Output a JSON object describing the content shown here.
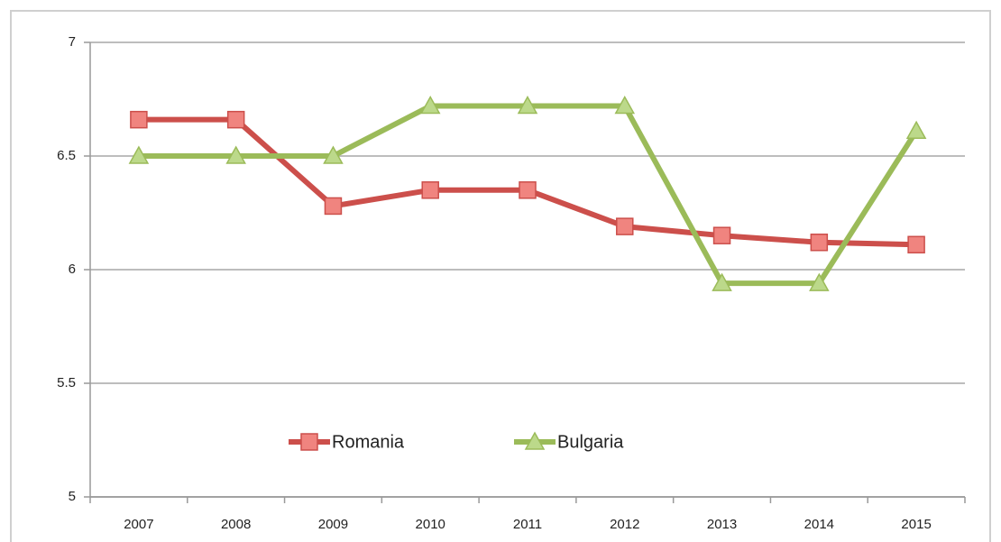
{
  "chart_data": {
    "type": "line",
    "categories": [
      "2007",
      "2008",
      "2009",
      "2010",
      "2011",
      "2012",
      "2013",
      "2014",
      "2015"
    ],
    "series": [
      {
        "name": "Romania",
        "color": "#cc4f4b",
        "marker": "square",
        "values": [
          6.66,
          6.66,
          6.28,
          6.35,
          6.35,
          6.19,
          6.15,
          6.12,
          6.11
        ]
      },
      {
        "name": "Bulgaria",
        "color": "#9bbb59",
        "marker": "triangle",
        "values": [
          6.5,
          6.5,
          6.5,
          6.72,
          6.72,
          6.72,
          5.94,
          5.94,
          6.61
        ]
      }
    ],
    "ylim": [
      5,
      7
    ],
    "yticks": [
      5,
      5.5,
      6,
      6.5,
      7
    ],
    "grid": true,
    "legend": "bottom-left"
  }
}
